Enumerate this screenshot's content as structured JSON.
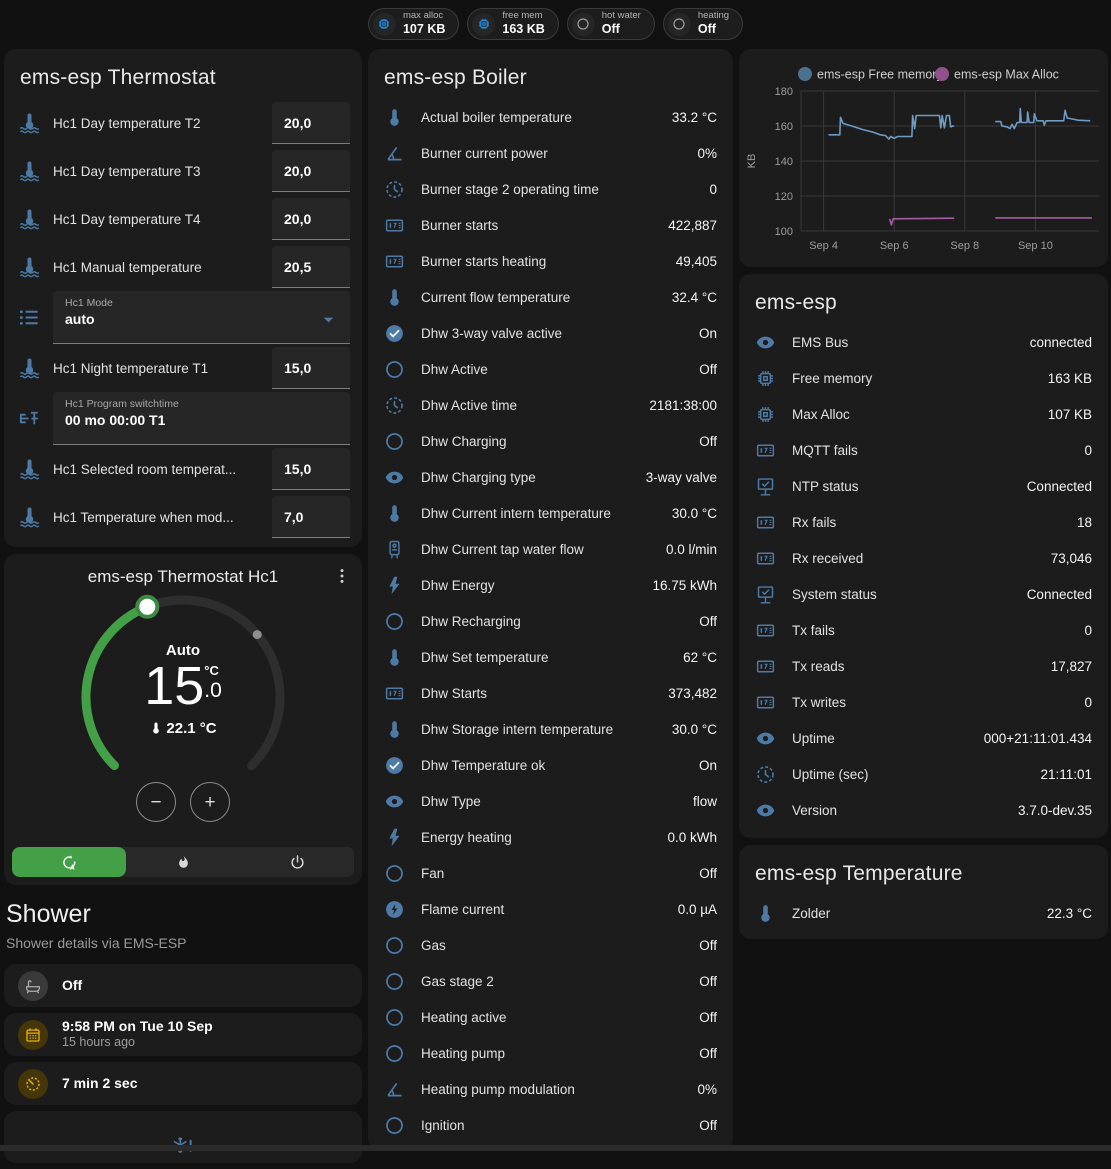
{
  "colors": {
    "icon_blue": "#4d7ba6",
    "chip_blue": "#2196f3",
    "accent_green": "#43a047",
    "amber": "#eab308",
    "card_bg": "#1c1c1c",
    "page_bg": "#111111"
  },
  "header": {
    "chips": [
      {
        "icon": "chip",
        "icon_color": "#2196f3",
        "label": "max alloc",
        "value": "107 KB"
      },
      {
        "icon": "chip",
        "icon_color": "#2196f3",
        "label": "free mem",
        "value": "163 KB"
      },
      {
        "icon": "circle-outline",
        "icon_color": "#9e9e9e",
        "label": "hot water",
        "value": "Off"
      },
      {
        "icon": "circle-outline",
        "icon_color": "#9e9e9e",
        "label": "heating",
        "value": "Off"
      }
    ]
  },
  "thermostat_card": {
    "title": "ems-esp Thermostat",
    "rows": [
      {
        "type": "number",
        "icon": "thermometer-water",
        "label": "Hc1 Day temperature T2",
        "value": "20,0"
      },
      {
        "type": "number",
        "icon": "thermometer-water",
        "label": "Hc1 Day temperature T3",
        "value": "20,0"
      },
      {
        "type": "number",
        "icon": "thermometer-water",
        "label": "Hc1 Day temperature T4",
        "value": "20,0"
      },
      {
        "type": "number",
        "icon": "thermometer-water",
        "label": "Hc1 Manual temperature",
        "value": "20,5"
      },
      {
        "type": "select",
        "icon": "format-list",
        "label": "Hc1 Mode",
        "value": "auto"
      },
      {
        "type": "number",
        "icon": "thermometer-water",
        "label": "Hc1 Night temperature T1",
        "value": "15,0"
      },
      {
        "type": "text",
        "icon": "valve",
        "label": "Hc1 Program switchtime",
        "value": "00 mo 00:00 T1"
      },
      {
        "type": "number",
        "icon": "thermometer-water",
        "label": "Hc1 Selected room temperat...",
        "value": "15,0"
      },
      {
        "type": "number",
        "icon": "thermometer-water",
        "label": "Hc1 Temperature when mod...",
        "value": "7,0"
      }
    ]
  },
  "dial_card": {
    "title": "ems-esp Thermostat Hc1",
    "mode_label": "Auto",
    "target_int": "15",
    "target_frac": ".0",
    "unit": "°C",
    "current": "22.1 °C",
    "minus_label": "−",
    "plus_label": "+",
    "modes": [
      {
        "name": "auto",
        "icon": "thermostat-auto",
        "active": true
      },
      {
        "name": "heat",
        "icon": "fire",
        "active": false
      },
      {
        "name": "off",
        "icon": "power",
        "active": false
      }
    ]
  },
  "shower": {
    "title": "Shower",
    "subtitle": "Shower details via EMS-ESP",
    "items": [
      {
        "icon": "bathtub",
        "style": "gray",
        "primary": "Off"
      },
      {
        "icon": "calendar",
        "style": "amber",
        "primary": "9:58 PM on Tue 10 Sep",
        "secondary": "15 hours ago"
      },
      {
        "icon": "timer",
        "style": "amber",
        "primary": "7 min 2 sec"
      },
      {
        "icon": "snowflake-alert",
        "style": "plain",
        "partial": true
      }
    ]
  },
  "boiler_card": {
    "title": "ems-esp Boiler",
    "rows": [
      {
        "icon": "thermometer",
        "label": "Actual boiler temperature",
        "value": "33.2 °C"
      },
      {
        "icon": "angle-acute",
        "label": "Burner current power",
        "value": "0%"
      },
      {
        "icon": "clock-dashed",
        "label": "Burner stage 2 operating time",
        "value": "0"
      },
      {
        "icon": "counter",
        "label": "Burner starts",
        "value": "422,887"
      },
      {
        "icon": "counter",
        "label": "Burner starts heating",
        "value": "49,405"
      },
      {
        "icon": "thermometer",
        "label": "Current flow temperature",
        "value": "32.4 °C"
      },
      {
        "icon": "check-circle",
        "label": "Dhw 3-way valve active",
        "value": "On"
      },
      {
        "icon": "circle-outline",
        "label": "Dhw Active",
        "value": "Off"
      },
      {
        "icon": "clock-dashed",
        "label": "Dhw Active time",
        "value": "2181:38:00"
      },
      {
        "icon": "circle-outline",
        "label": "Dhw Charging",
        "value": "Off"
      },
      {
        "icon": "eye",
        "label": "Dhw Charging type",
        "value": "3-way valve"
      },
      {
        "icon": "thermometer",
        "label": "Dhw Current intern temperature",
        "value": "30.0 °C"
      },
      {
        "icon": "water-heater",
        "label": "Dhw Current tap water flow",
        "value": "0.0 l/min"
      },
      {
        "icon": "flash",
        "label": "Dhw Energy",
        "value": "16.75 kWh"
      },
      {
        "icon": "circle-outline",
        "label": "Dhw Recharging",
        "value": "Off"
      },
      {
        "icon": "thermometer",
        "label": "Dhw Set temperature",
        "value": "62 °C"
      },
      {
        "icon": "counter",
        "label": "Dhw Starts",
        "value": "373,482"
      },
      {
        "icon": "thermometer",
        "label": "Dhw Storage intern temperature",
        "value": "30.0 °C"
      },
      {
        "icon": "check-circle",
        "label": "Dhw Temperature ok",
        "value": "On"
      },
      {
        "icon": "eye",
        "label": "Dhw Type",
        "value": "flow"
      },
      {
        "icon": "flash",
        "label": "Energy heating",
        "value": "0.0 kWh"
      },
      {
        "icon": "circle-outline",
        "label": "Fan",
        "value": "Off"
      },
      {
        "icon": "flash-circle",
        "label": "Flame current",
        "value": "0.0 µA"
      },
      {
        "icon": "circle-outline",
        "label": "Gas",
        "value": "Off"
      },
      {
        "icon": "circle-outline",
        "label": "Gas stage 2",
        "value": "Off"
      },
      {
        "icon": "circle-outline",
        "label": "Heating active",
        "value": "Off"
      },
      {
        "icon": "circle-outline",
        "label": "Heating pump",
        "value": "Off"
      },
      {
        "icon": "angle-acute",
        "label": "Heating pump modulation",
        "value": "0%"
      },
      {
        "icon": "circle-outline",
        "label": "Ignition",
        "value": "Off"
      }
    ]
  },
  "emsesp_card": {
    "title": "ems-esp",
    "rows": [
      {
        "icon": "eye",
        "label": "EMS Bus",
        "value": "connected"
      },
      {
        "icon": "chip",
        "label": "Free memory",
        "value": "163 KB"
      },
      {
        "icon": "chip",
        "label": "Max Alloc",
        "value": "107 KB"
      },
      {
        "icon": "counter",
        "label": "MQTT fails",
        "value": "0"
      },
      {
        "icon": "network-check",
        "label": "NTP status",
        "value": "Connected"
      },
      {
        "icon": "counter",
        "label": "Rx fails",
        "value": "18"
      },
      {
        "icon": "counter",
        "label": "Rx received",
        "value": "73,046"
      },
      {
        "icon": "network-check",
        "label": "System status",
        "value": "Connected"
      },
      {
        "icon": "counter",
        "label": "Tx fails",
        "value": "0"
      },
      {
        "icon": "counter",
        "label": "Tx reads",
        "value": "17,827"
      },
      {
        "icon": "counter",
        "label": "Tx writes",
        "value": "0"
      },
      {
        "icon": "eye",
        "label": "Uptime",
        "value": "000+21:11:01.434"
      },
      {
        "icon": "clock-dashed",
        "label": "Uptime (sec)",
        "value": "21:11:01"
      },
      {
        "icon": "eye",
        "label": "Version",
        "value": "3.7.0-dev.35"
      }
    ]
  },
  "temperature_card": {
    "title": "ems-esp Temperature",
    "rows": [
      {
        "icon": "thermometer",
        "label": "Zolder",
        "value": "22.3 °C"
      }
    ]
  },
  "chart_data": {
    "type": "line",
    "title": "",
    "xlabel": "",
    "ylabel": "KB",
    "ylim": [
      100,
      180
    ],
    "yticks": [
      100,
      120,
      140,
      160,
      180
    ],
    "xlim": [
      3.36,
      11.8
    ],
    "xticks": [
      {
        "x": 4,
        "label": "Sep 4"
      },
      {
        "x": 6,
        "label": "Sep 6"
      },
      {
        "x": 8,
        "label": "Sep 8"
      },
      {
        "x": 10,
        "label": "Sep 10"
      }
    ],
    "grid": true,
    "legend_position": "top",
    "series": [
      {
        "name": "ems-esp Free memory",
        "color": "#6c9bc4",
        "legend_color": "#4c708f",
        "segments": [
          [
            [
              4.14,
              155
            ],
            [
              4.46,
              155
            ],
            [
              4.48,
              165
            ],
            [
              4.55,
              161.5
            ],
            [
              4.8,
              160
            ],
            [
              5.1,
              158
            ],
            [
              5.4,
              156.5
            ],
            [
              5.6,
              155
            ],
            [
              5.75,
              154.5
            ],
            [
              5.85,
              152.5
            ],
            [
              5.9,
              154
            ],
            [
              6.0,
              153
            ],
            [
              6.1,
              154
            ],
            [
              6.5,
              154
            ],
            [
              6.52,
              166
            ],
            [
              6.58,
              158.5
            ],
            [
              6.62,
              166
            ],
            [
              7.28,
              166
            ],
            [
              7.32,
              159
            ],
            [
              7.36,
              166
            ],
            [
              7.42,
              159
            ],
            [
              7.48,
              166
            ],
            [
              7.56,
              166
            ],
            [
              7.6,
              159.5
            ],
            [
              7.66,
              160
            ],
            [
              7.7,
              160
            ]
          ],
          [
            [
              8.86,
              162.5
            ],
            [
              9.02,
              162.5
            ],
            [
              9.05,
              160
            ],
            [
              9.2,
              159.5
            ],
            [
              9.28,
              158.5
            ],
            [
              9.34,
              161
            ],
            [
              9.4,
              158.5
            ],
            [
              9.48,
              162
            ],
            [
              9.55,
              162
            ],
            [
              9.57,
              170
            ],
            [
              9.6,
              162
            ],
            [
              9.76,
              162
            ],
            [
              9.78,
              168
            ],
            [
              9.82,
              162
            ],
            [
              9.95,
              162
            ],
            [
              9.97,
              167
            ],
            [
              10.04,
              163
            ],
            [
              10.22,
              163
            ],
            [
              10.25,
              160.5
            ],
            [
              10.3,
              163
            ],
            [
              10.8,
              163
            ],
            [
              10.84,
              169
            ],
            [
              10.9,
              164.5
            ],
            [
              11.05,
              164
            ],
            [
              11.2,
              163.3
            ],
            [
              11.55,
              163
            ]
          ]
        ]
      },
      {
        "name": "ems-esp Max Alloc",
        "color": "#a85ba8",
        "legend_color": "#92518c",
        "segments": [
          [
            [
              5.87,
              107
            ],
            [
              5.92,
              103.5
            ],
            [
              5.97,
              107
            ],
            [
              7.7,
              107.3
            ]
          ],
          [
            [
              8.86,
              107.5
            ],
            [
              11.6,
              107.5
            ]
          ]
        ]
      }
    ]
  }
}
